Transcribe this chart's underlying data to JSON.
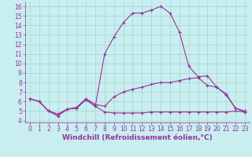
{
  "xlabel": "Windchill (Refroidissement éolien,°C)",
  "xlim": [
    -0.5,
    23.5
  ],
  "ylim": [
    3.8,
    16.5
  ],
  "xticks": [
    0,
    1,
    2,
    3,
    4,
    5,
    6,
    7,
    8,
    9,
    10,
    11,
    12,
    13,
    14,
    15,
    16,
    17,
    18,
    19,
    20,
    21,
    22,
    23
  ],
  "yticks": [
    4,
    5,
    6,
    7,
    8,
    9,
    10,
    11,
    12,
    13,
    14,
    15,
    16
  ],
  "background_color": "#c8eef0",
  "grid_color": "#a0ccc8",
  "line_color": "#993399",
  "lines": [
    {
      "x": [
        0,
        1,
        2,
        3,
        4,
        5,
        6,
        7,
        8,
        9,
        10,
        11,
        12,
        13,
        14,
        15,
        16,
        17,
        18,
        19,
        20,
        21,
        22,
        23
      ],
      "y": [
        6.3,
        6.0,
        5.0,
        4.7,
        5.2,
        5.4,
        6.3,
        5.7,
        5.5,
        6.5,
        7.0,
        7.3,
        7.5,
        7.8,
        8.0,
        8.0,
        8.2,
        8.4,
        8.5,
        7.7,
        7.5,
        6.8,
        5.3,
        5.0
      ]
    },
    {
      "x": [
        0,
        1,
        2,
        3,
        4,
        5,
        6,
        7,
        8,
        9,
        10,
        11,
        12,
        13,
        14,
        15,
        16,
        17,
        18,
        19,
        20,
        21,
        22,
        23
      ],
      "y": [
        6.3,
        6.0,
        5.0,
        4.5,
        5.2,
        5.3,
        6.2,
        5.5,
        4.9,
        4.8,
        4.8,
        4.8,
        4.8,
        4.9,
        4.9,
        4.9,
        4.9,
        4.9,
        4.9,
        4.9,
        4.9,
        4.9,
        5.0,
        4.9
      ]
    },
    {
      "x": [
        0,
        1,
        2,
        3,
        4,
        5,
        6,
        7,
        8,
        9,
        10,
        11,
        12,
        13,
        14,
        15,
        16,
        17,
        18,
        19,
        20,
        21,
        22,
        23
      ],
      "y": [
        6.3,
        6.0,
        5.0,
        4.5,
        5.2,
        5.3,
        6.2,
        5.5,
        11.0,
        12.8,
        14.3,
        15.3,
        15.3,
        15.6,
        16.0,
        15.3,
        13.3,
        9.7,
        8.6,
        8.7,
        7.5,
        6.7,
        5.3,
        4.9
      ]
    }
  ],
  "marker": "+",
  "markersize": 3,
  "linewidth": 0.8,
  "xlabel_fontsize": 6.5,
  "tick_fontsize": 5.5
}
